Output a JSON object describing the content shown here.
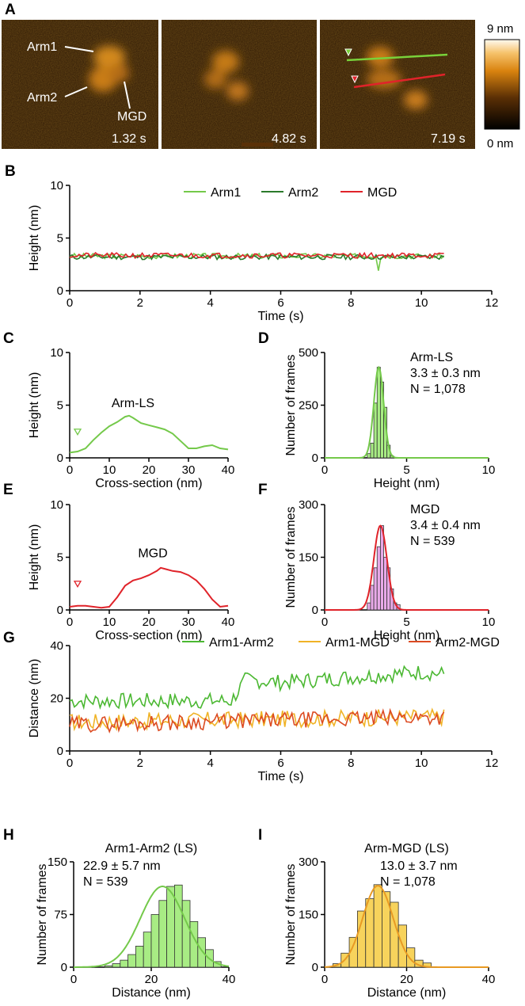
{
  "figure": {
    "panels": [
      "A",
      "B",
      "C",
      "D",
      "E",
      "F",
      "G",
      "H",
      "I"
    ]
  },
  "afm": {
    "frames": [
      {
        "time": "1.32 s",
        "labels": [
          "Arm1",
          "Arm2",
          "MGD"
        ]
      },
      {
        "time": "4.82 s",
        "labels": []
      },
      {
        "time": "7.19 s",
        "labels": []
      }
    ],
    "colorbar": {
      "max": "9 nm",
      "min": "0 nm"
    },
    "line_colors": {
      "green": "#79d13a",
      "red": "#e0232a"
    }
  },
  "chart_data": [
    {
      "id": "B",
      "type": "line",
      "xlabel": "Time (s)",
      "ylabel": "Height (nm)",
      "xlim": [
        0,
        12
      ],
      "ylim": [
        0,
        10
      ],
      "xticks": [
        0,
        2,
        4,
        6,
        8,
        10,
        12
      ],
      "yticks": [
        0,
        5,
        10
      ],
      "legend": "top-right",
      "series": [
        {
          "name": "Arm1",
          "color": "#74c94a",
          "mean": 3.3,
          "noise": 0.25,
          "seed": 3
        },
        {
          "name": "Arm2",
          "color": "#2b7a2b",
          "mean": 3.2,
          "noise": 0.25,
          "seed": 11
        },
        {
          "name": "MGD",
          "color": "#e0232a",
          "mean": 3.35,
          "noise": 0.25,
          "seed": 21
        }
      ],
      "x": {
        "start": 0.0,
        "end": 10.7,
        "step": 0.0665
      },
      "dip": {
        "x": 8.8,
        "value": 1.9
      }
    },
    {
      "id": "C",
      "type": "line",
      "xlabel": "Cross-section (nm)",
      "ylabel": "Height (nm)",
      "xlim": [
        0,
        40
      ],
      "ylim": [
        0,
        10
      ],
      "xticks": [
        0,
        10,
        20,
        30,
        40
      ],
      "yticks": [
        0,
        5,
        10
      ],
      "annotation": "Arm-LS",
      "series": [
        {
          "color": "#74c94a",
          "x": [
            0,
            2,
            4,
            6,
            8,
            10,
            12,
            14,
            15,
            16,
            18,
            20,
            22,
            24,
            26,
            28,
            30,
            32,
            34,
            36,
            38,
            40
          ],
          "y": [
            0.5,
            0.6,
            0.9,
            1.7,
            2.4,
            3.0,
            3.4,
            3.9,
            4.0,
            3.8,
            3.3,
            3.1,
            2.9,
            2.7,
            2.3,
            1.6,
            0.9,
            0.9,
            1.1,
            1.2,
            0.9,
            0.8
          ]
        }
      ]
    },
    {
      "id": "D",
      "type": "bar",
      "xlabel": "Height (nm)",
      "ylabel": "Number of frames",
      "xlim": [
        0,
        10
      ],
      "ylim": [
        0,
        500
      ],
      "xticks": [
        0,
        5,
        10
      ],
      "yticks": [
        0,
        250,
        500
      ],
      "fill": "#a8ec84",
      "stroke": "#74c94a",
      "annotation": [
        "Arm-LS",
        "3.3 ± 0.3 nm",
        "N = 1,078"
      ],
      "bins": [
        2.6,
        2.8,
        3.0,
        3.2,
        3.4,
        3.6,
        3.8,
        4.0
      ],
      "counts": [
        20,
        70,
        260,
        430,
        360,
        240,
        60,
        10
      ],
      "fit": {
        "mean": 3.3,
        "sd": 0.3,
        "peak": 430
      }
    },
    {
      "id": "E",
      "type": "line",
      "xlabel": "Cross-section (nm)",
      "ylabel": "Height (nm)",
      "xlim": [
        0,
        40
      ],
      "ylim": [
        0,
        10
      ],
      "xticks": [
        0,
        10,
        20,
        30,
        40
      ],
      "yticks": [
        0,
        5,
        10
      ],
      "annotation": "MGD",
      "series": [
        {
          "color": "#e0232a",
          "x": [
            0,
            2,
            4,
            6,
            8,
            10,
            12,
            14,
            16,
            18,
            20,
            22,
            23,
            24,
            26,
            28,
            30,
            32,
            34,
            36,
            38,
            40
          ],
          "y": [
            0.3,
            0.4,
            0.4,
            0.3,
            0.2,
            0.3,
            1.2,
            2.3,
            2.8,
            3.0,
            3.3,
            3.7,
            4.0,
            3.9,
            3.7,
            3.6,
            3.3,
            2.8,
            2.0,
            1.0,
            0.3,
            0.4
          ]
        }
      ]
    },
    {
      "id": "F",
      "type": "bar",
      "xlabel": "Height (nm)",
      "ylabel": "Number of frames",
      "xlim": [
        0,
        10
      ],
      "ylim": [
        0,
        300
      ],
      "xticks": [
        0,
        5,
        10
      ],
      "yticks": [
        0,
        150,
        300
      ],
      "fill": "#e8a9e8",
      "stroke": "#e0232a",
      "annotation": [
        "MGD",
        "3.4 ± 0.4 nm",
        "N = 539"
      ],
      "bins": [
        2.6,
        2.8,
        3.0,
        3.2,
        3.4,
        3.6,
        3.8,
        4.0,
        4.2,
        4.4
      ],
      "counts": [
        20,
        70,
        120,
        180,
        240,
        150,
        120,
        60,
        20,
        15
      ],
      "fit": {
        "mean": 3.4,
        "sd": 0.4,
        "peak": 240
      }
    },
    {
      "id": "G",
      "type": "line",
      "xlabel": "Time (s)",
      "ylabel": "Distance (nm)",
      "xlim": [
        0,
        12
      ],
      "ylim": [
        0,
        40
      ],
      "xticks": [
        0,
        2,
        4,
        6,
        8,
        10,
        12
      ],
      "yticks": [
        0,
        20,
        40
      ],
      "legend": "top-right",
      "x": {
        "start": 0.0,
        "end": 10.7,
        "step": 0.0665
      },
      "series": [
        {
          "name": "Arm1-Arm2",
          "color": "#4bb832",
          "noise": 3.0,
          "seed": 7,
          "trend_x": [
            0,
            4,
            4.6,
            5,
            6,
            7,
            8,
            9,
            10,
            10.7
          ],
          "trend_y": [
            19,
            19,
            19,
            27,
            26,
            27,
            28,
            29,
            30,
            29
          ]
        },
        {
          "name": "Arm1-MGD",
          "color": "#f0b326",
          "noise": 3.2,
          "seed": 17,
          "trend_x": [
            0,
            10.7
          ],
          "trend_y": [
            11,
            13
          ]
        },
        {
          "name": "Arm2-MGD",
          "color": "#dc4b22",
          "noise": 3.0,
          "seed": 29,
          "trend_x": [
            0,
            10.7
          ],
          "trend_y": [
            10,
            13
          ]
        }
      ]
    },
    {
      "id": "H",
      "type": "bar",
      "title": "Arm1-Arm2 (LS)",
      "xlabel": "Distance (nm)",
      "ylabel": "Number of frames",
      "xlim": [
        0,
        40
      ],
      "ylim": [
        0,
        150
      ],
      "xticks": [
        0,
        20,
        40
      ],
      "yticks": [
        0,
        75,
        150
      ],
      "fill": "#a8ec84",
      "stroke": "#74c94a",
      "annotation": [
        "22.9 ± 5.7 nm",
        "N = 539"
      ],
      "bins": [
        6,
        8,
        10,
        12,
        14,
        16,
        18,
        20,
        22,
        24,
        26,
        28,
        30,
        32,
        34,
        36,
        38
      ],
      "counts": [
        0,
        2,
        5,
        10,
        18,
        30,
        50,
        75,
        95,
        115,
        117,
        95,
        65,
        42,
        25,
        8,
        0
      ],
      "fit": {
        "mean": 22.9,
        "sd": 5.7,
        "peak": 115
      }
    },
    {
      "id": "I",
      "type": "bar",
      "title": "Arm-MGD (LS)",
      "xlabel": "Distance (nm)",
      "ylabel": "Number of frames",
      "xlim": [
        0,
        40
      ],
      "ylim": [
        0,
        300
      ],
      "xticks": [
        0,
        20,
        40
      ],
      "yticks": [
        0,
        150,
        300
      ],
      "fill": "#f7d35c",
      "stroke": "#e89a23",
      "annotation": [
        "13.0 ± 3.7 nm",
        "N = 1,078"
      ],
      "bins": [
        2,
        4,
        6,
        8,
        10,
        12,
        14,
        16,
        18,
        20,
        22,
        24
      ],
      "counts": [
        10,
        40,
        85,
        160,
        195,
        235,
        215,
        185,
        120,
        55,
        20,
        12
      ],
      "fit": {
        "mean": 13.0,
        "sd": 3.7,
        "peak": 232
      }
    }
  ]
}
